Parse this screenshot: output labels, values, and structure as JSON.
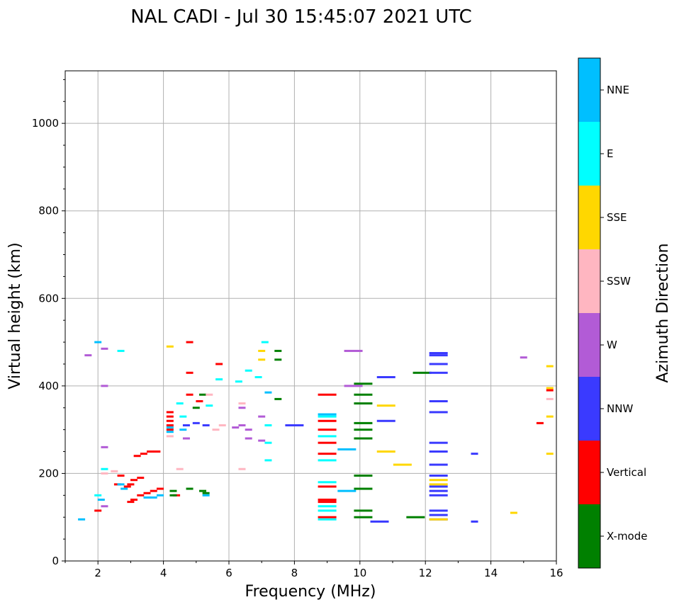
{
  "chart_data": {
    "type": "scatter",
    "title": "NAL CADI - Jul 30 15:45:07 2021 UTC",
    "xlabel": "Frequency (MHz)",
    "ylabel": "Virtual height (km)",
    "xlim": [
      1,
      16
    ],
    "ylim": [
      0,
      1120
    ],
    "xticks": [
      2,
      4,
      6,
      8,
      10,
      12,
      14,
      16
    ],
    "yticks": [
      0,
      200,
      400,
      600,
      800,
      1000
    ],
    "grid": true,
    "colorbar": {
      "label": "Azimuth Direction",
      "categories": [
        {
          "name": "X-mode",
          "color": "#008000"
        },
        {
          "name": "Vertical",
          "color": "#ff0000"
        },
        {
          "name": "NNW",
          "color": "#3a3aff"
        },
        {
          "name": "W",
          "color": "#b25bd6"
        },
        {
          "name": "SSW",
          "color": "#ffb6c1"
        },
        {
          "name": "SSE",
          "color": "#ffd700"
        },
        {
          "name": "E",
          "color": "#00ffff"
        },
        {
          "name": "NNE",
          "color": "#00bfff"
        }
      ]
    },
    "series": [
      {
        "name": "Vertical",
        "points": [
          [
            3.0,
            135
          ],
          [
            3.1,
            140
          ],
          [
            3.3,
            150
          ],
          [
            3.5,
            155
          ],
          [
            3.7,
            160
          ],
          [
            3.9,
            165
          ],
          [
            3.1,
            185
          ],
          [
            3.3,
            190
          ],
          [
            3.0,
            175
          ],
          [
            2.9,
            170
          ],
          [
            3.2,
            240
          ],
          [
            3.4,
            245
          ],
          [
            3.6,
            250
          ],
          [
            3.8,
            250
          ],
          [
            4.2,
            300
          ],
          [
            4.2,
            310
          ],
          [
            4.2,
            320
          ],
          [
            4.2,
            330
          ],
          [
            4.2,
            340
          ],
          [
            4.4,
            150
          ],
          [
            4.8,
            380
          ],
          [
            4.8,
            430
          ],
          [
            4.8,
            500
          ],
          [
            5.1,
            365
          ],
          [
            5.7,
            450
          ],
          [
            9.0,
            100
          ],
          [
            9.0,
            135
          ],
          [
            9.0,
            140
          ],
          [
            9.0,
            170
          ],
          [
            9.0,
            245
          ],
          [
            9.0,
            270
          ],
          [
            9.0,
            300
          ],
          [
            9.0,
            320
          ],
          [
            9.0,
            380
          ],
          [
            15.5,
            315
          ],
          [
            15.8,
            390
          ],
          [
            2.0,
            115
          ],
          [
            2.6,
            175
          ],
          [
            2.7,
            195
          ]
        ]
      },
      {
        "name": "X-mode",
        "points": [
          [
            4.3,
            160
          ],
          [
            4.3,
            150
          ],
          [
            4.8,
            165
          ],
          [
            5.2,
            160
          ],
          [
            5.3,
            155
          ],
          [
            5.0,
            350
          ],
          [
            5.2,
            380
          ],
          [
            10.1,
            100
          ],
          [
            10.1,
            115
          ],
          [
            10.1,
            165
          ],
          [
            10.1,
            195
          ],
          [
            10.1,
            280
          ],
          [
            10.1,
            300
          ],
          [
            10.1,
            315
          ],
          [
            10.1,
            360
          ],
          [
            10.1,
            380
          ],
          [
            10.1,
            405
          ],
          [
            7.5,
            480
          ],
          [
            7.5,
            460
          ],
          [
            7.5,
            370
          ],
          [
            11.7,
            100
          ],
          [
            11.9,
            430
          ]
        ]
      },
      {
        "name": "NNW",
        "points": [
          [
            12.4,
            95
          ],
          [
            12.4,
            105
          ],
          [
            12.4,
            115
          ],
          [
            12.4,
            150
          ],
          [
            12.4,
            160
          ],
          [
            12.4,
            170
          ],
          [
            12.4,
            195
          ],
          [
            12.4,
            220
          ],
          [
            12.4,
            250
          ],
          [
            12.4,
            270
          ],
          [
            12.4,
            340
          ],
          [
            12.4,
            365
          ],
          [
            12.4,
            430
          ],
          [
            12.4,
            450
          ],
          [
            12.4,
            470
          ],
          [
            12.4,
            475
          ],
          [
            4.7,
            310
          ],
          [
            5.0,
            315
          ],
          [
            5.3,
            310
          ],
          [
            10.6,
            90
          ],
          [
            10.8,
            320
          ],
          [
            10.8,
            420
          ],
          [
            13.5,
            90
          ],
          [
            13.5,
            245
          ],
          [
            8.0,
            310
          ]
        ]
      },
      {
        "name": "W",
        "points": [
          [
            6.2,
            305
          ],
          [
            6.4,
            310
          ],
          [
            6.6,
            300
          ],
          [
            6.6,
            280
          ],
          [
            7.0,
            275
          ],
          [
            7.0,
            330
          ],
          [
            4.7,
            280
          ],
          [
            6.4,
            350
          ],
          [
            15.0,
            465
          ],
          [
            2.2,
            125
          ],
          [
            1.7,
            470
          ],
          [
            2.2,
            485
          ],
          [
            2.2,
            400
          ],
          [
            2.2,
            260
          ],
          [
            9.8,
            480
          ],
          [
            9.8,
            400
          ]
        ]
      },
      {
        "name": "SSW",
        "points": [
          [
            4.2,
            285
          ],
          [
            5.6,
            300
          ],
          [
            5.8,
            310
          ],
          [
            6.4,
            210
          ],
          [
            6.4,
            360
          ],
          [
            5.4,
            380
          ],
          [
            4.5,
            210
          ],
          [
            15.8,
            370
          ],
          [
            2.2,
            200
          ],
          [
            2.5,
            205
          ]
        ]
      },
      {
        "name": "SSE",
        "points": [
          [
            4.2,
            490
          ],
          [
            7.0,
            460
          ],
          [
            7.0,
            480
          ],
          [
            12.4,
            95
          ],
          [
            12.4,
            175
          ],
          [
            12.4,
            185
          ],
          [
            11.3,
            220
          ],
          [
            10.8,
            250
          ],
          [
            10.8,
            355
          ],
          [
            14.7,
            110
          ],
          [
            15.8,
            245
          ],
          [
            15.8,
            330
          ],
          [
            15.8,
            445
          ],
          [
            15.8,
            395
          ]
        ]
      },
      {
        "name": "E",
        "points": [
          [
            4.5,
            360
          ],
          [
            4.6,
            330
          ],
          [
            5.4,
            355
          ],
          [
            5.7,
            415
          ],
          [
            6.3,
            410
          ],
          [
            6.6,
            435
          ],
          [
            6.9,
            420
          ],
          [
            7.1,
            500
          ],
          [
            9.0,
            95
          ],
          [
            9.0,
            115
          ],
          [
            9.0,
            125
          ],
          [
            9.0,
            180
          ],
          [
            9.0,
            230
          ],
          [
            9.0,
            285
          ],
          [
            9.0,
            330
          ],
          [
            7.2,
            310
          ],
          [
            7.2,
            270
          ],
          [
            7.2,
            230
          ],
          [
            2.0,
            150
          ],
          [
            2.2,
            210
          ],
          [
            2.7,
            480
          ]
        ]
      },
      {
        "name": "NNE",
        "points": [
          [
            3.5,
            145
          ],
          [
            3.7,
            145
          ],
          [
            3.9,
            150
          ],
          [
            4.2,
            295
          ],
          [
            4.2,
            305
          ],
          [
            4.6,
            300
          ],
          [
            5.3,
            150
          ],
          [
            2.1,
            140
          ],
          [
            2.7,
            175
          ],
          [
            2.8,
            165
          ],
          [
            7.2,
            385
          ],
          [
            9.0,
            335
          ],
          [
            9.6,
            255
          ],
          [
            9.6,
            160
          ],
          [
            1.5,
            95
          ],
          [
            2.0,
            500
          ]
        ]
      }
    ]
  }
}
